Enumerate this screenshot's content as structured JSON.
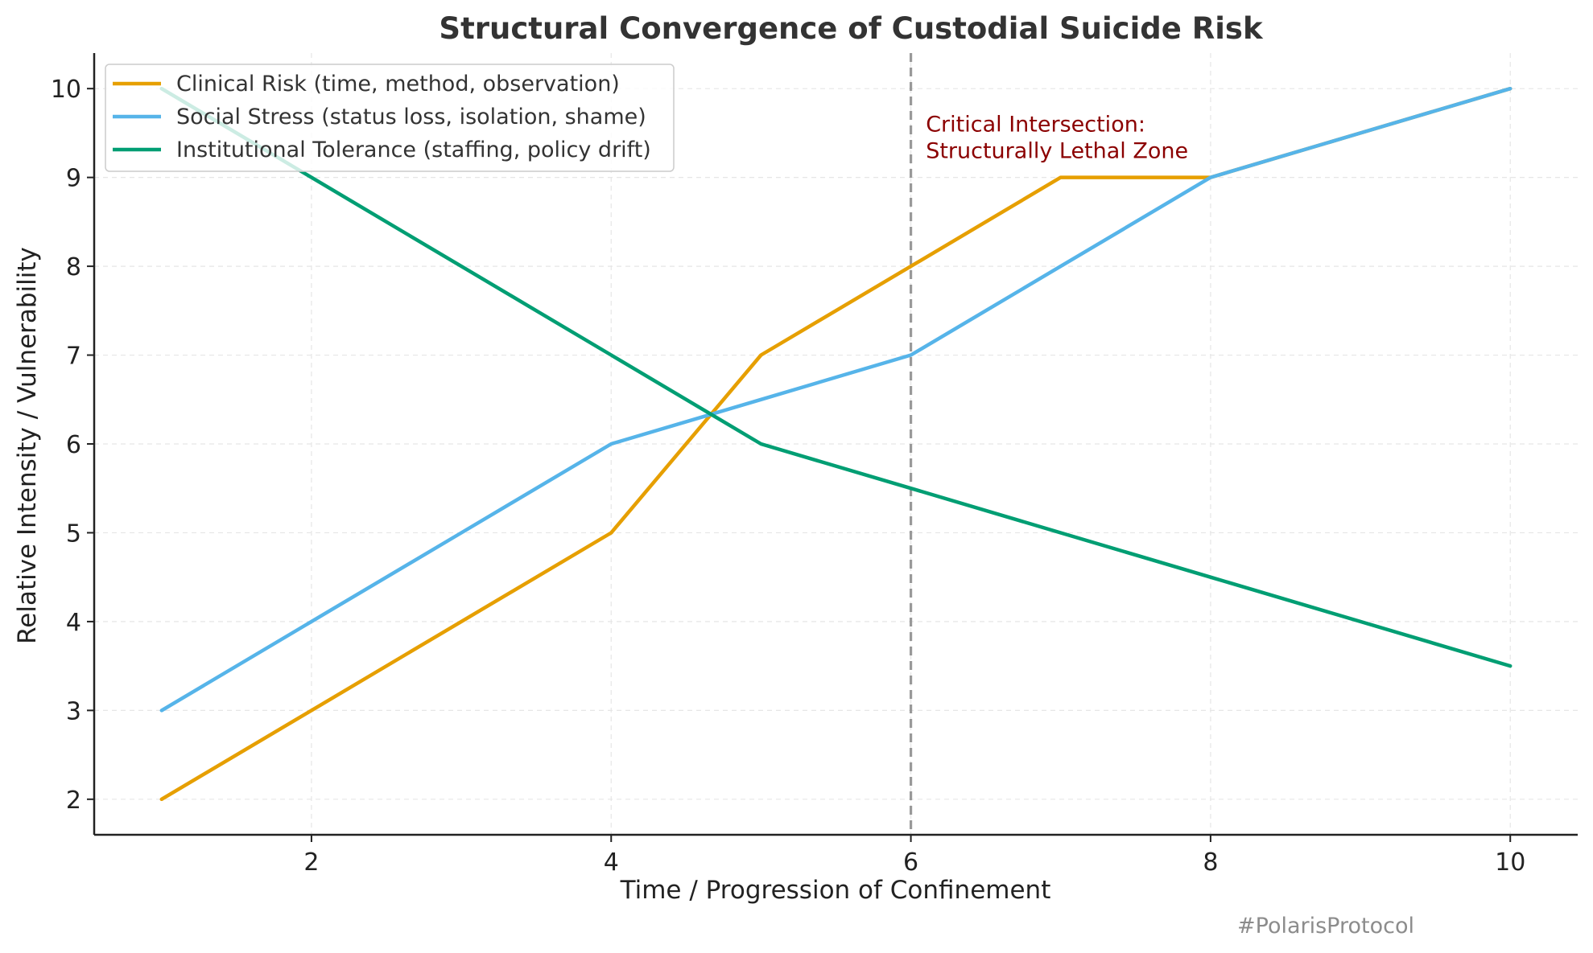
{
  "chart_data": {
    "type": "line",
    "title": "Structural Convergence of Custodial Suicide Risk",
    "xlabel": "Time / Progression of Confinement",
    "ylabel": "Relative Intensity / Vulnerability",
    "xlim": [
      0.55,
      10.45
    ],
    "ylim": [
      1.6,
      10.4
    ],
    "xticks": [
      2,
      4,
      6,
      8,
      10
    ],
    "yticks": [
      2,
      3,
      4,
      5,
      6,
      7,
      8,
      9,
      10
    ],
    "grid": true,
    "legend_position": "top-left",
    "series": [
      {
        "name": "Clinical Risk (time, method, observation)",
        "color": "#E69F00",
        "x": [
          1,
          2,
          3,
          4,
          5,
          6,
          7,
          8,
          9,
          10
        ],
        "y": [
          2,
          3,
          4,
          5,
          7,
          8,
          9,
          9,
          9.5,
          10
        ]
      },
      {
        "name": "Social Stress (status loss, isolation, shame)",
        "color": "#56B4E9",
        "x": [
          1,
          2,
          3,
          4,
          5,
          6,
          7,
          8,
          9,
          10
        ],
        "y": [
          3,
          4,
          5,
          6,
          6.5,
          7,
          8,
          9,
          9.5,
          10
        ]
      },
      {
        "name": "Institutional Tolerance (staffing, policy drift)",
        "color": "#009E73",
        "x": [
          1,
          2,
          3,
          4,
          5,
          6,
          7,
          8,
          9,
          10
        ],
        "y": [
          10,
          9,
          8,
          7,
          6,
          5.5,
          5,
          4.5,
          4,
          3.5
        ]
      }
    ],
    "vline": {
      "x": 6,
      "style": "dashed",
      "color": "#999999"
    },
    "annotation": {
      "lines": [
        "Critical Intersection:",
        "Structurally Lethal Zone"
      ],
      "x": 6.1,
      "y": 9.6,
      "color": "#8B0000"
    }
  },
  "watermark": "#PolarisProtocol"
}
